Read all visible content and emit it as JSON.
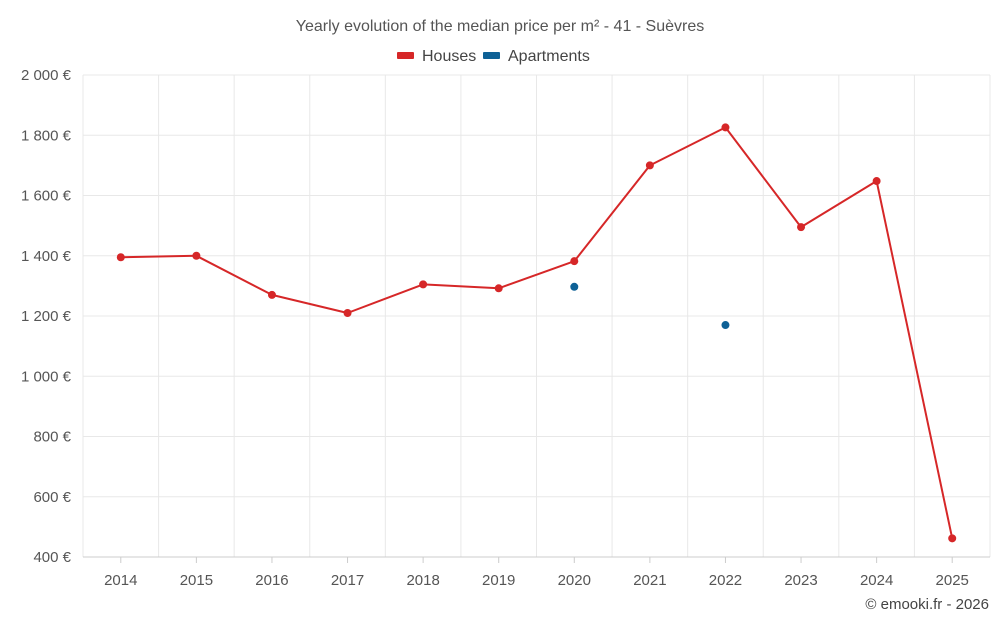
{
  "chart_data": {
    "type": "line",
    "title": "Yearly evolution of the median price per m² - 41 - Suèvres",
    "categories": [
      "2014",
      "2015",
      "2016",
      "2017",
      "2018",
      "2019",
      "2020",
      "2021",
      "2022",
      "2023",
      "2024",
      "2025"
    ],
    "series": [
      {
        "name": "Houses",
        "color": "#d62728",
        "values": [
          1395,
          1400,
          1270,
          1210,
          1305,
          1292,
          1382,
          1700,
          1826,
          1495,
          1648,
          462
        ]
      },
      {
        "name": "Apartments",
        "color": "#0e6196",
        "values": [
          null,
          null,
          null,
          null,
          null,
          null,
          1297,
          null,
          1170,
          null,
          null,
          null
        ]
      }
    ],
    "ylim": [
      400,
      2000
    ],
    "yticks": [
      400,
      600,
      800,
      1000,
      1200,
      1400,
      1600,
      1800,
      2000
    ],
    "ytick_labels": [
      "400 €",
      "600 €",
      "800 €",
      "1 000 €",
      "1 200 €",
      "1 400 €",
      "1 600 €",
      "1 800 €",
      "2 000 €"
    ],
    "xlabel": "",
    "ylabel": "",
    "legend_position": "top-center",
    "grid": true
  },
  "credit": "© emooki.fr - 2026"
}
